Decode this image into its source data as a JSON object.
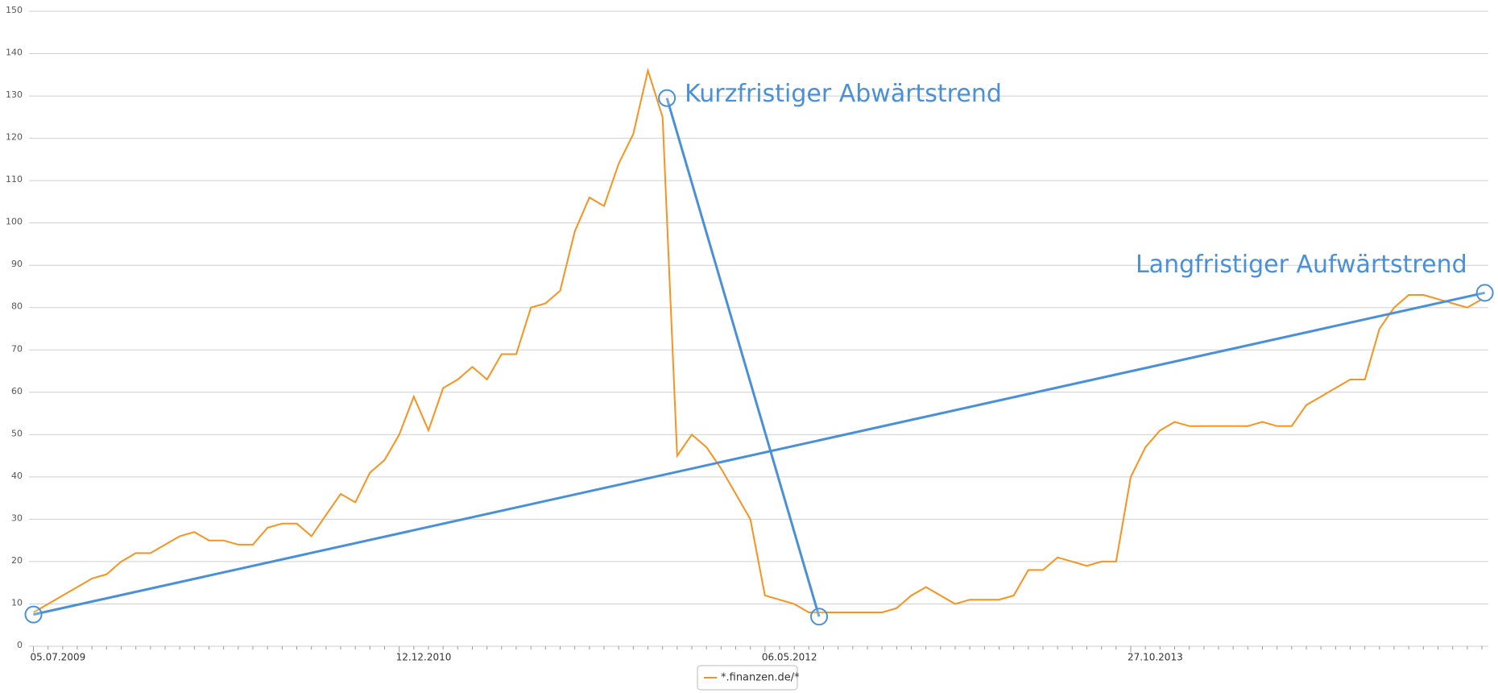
{
  "chart_data": {
    "type": "line",
    "categories": [
      "05.07.2009",
      null,
      null,
      null,
      null,
      null,
      null,
      null,
      null,
      null,
      null,
      null,
      null,
      null,
      null,
      null,
      null,
      null,
      null,
      null,
      null,
      null,
      null,
      null,
      null,
      "12.12.2010",
      null,
      null,
      null,
      null,
      null,
      null,
      null,
      null,
      null,
      null,
      null,
      null,
      null,
      null,
      null,
      null,
      null,
      null,
      null,
      null,
      null,
      null,
      null,
      null,
      "06.05.2012",
      null,
      null,
      null,
      null,
      null,
      null,
      null,
      null,
      null,
      null,
      null,
      null,
      null,
      null,
      null,
      null,
      null,
      null,
      null,
      null,
      null,
      null,
      null,
      null,
      "27.10.2013",
      null,
      null,
      null,
      null,
      null,
      null,
      null,
      null,
      null,
      null,
      null,
      null,
      null,
      null,
      null,
      null,
      null,
      null,
      null,
      null,
      null,
      null,
      null,
      null
    ],
    "series": [
      {
        "name": "*.finanzen.de/*",
        "color": "#f7931e",
        "values": [
          8,
          10,
          12,
          14,
          16,
          17,
          20,
          22,
          22,
          24,
          26,
          27,
          25,
          25,
          24,
          24,
          28,
          29,
          29,
          26,
          31,
          36,
          34,
          41,
          44,
          50,
          59,
          51,
          61,
          63,
          66,
          63,
          69,
          69,
          80,
          81,
          84,
          98,
          106,
          104,
          114,
          121,
          136,
          125,
          45,
          50,
          47,
          42,
          36,
          30,
          12,
          11,
          10,
          8,
          8,
          8,
          8,
          8,
          8,
          9,
          12,
          14,
          12,
          10,
          11,
          11,
          11,
          12,
          18,
          18,
          21,
          20,
          19,
          20,
          20,
          40,
          47,
          51,
          53,
          52,
          52,
          52,
          52,
          52,
          53,
          52,
          52,
          57,
          59,
          61,
          63,
          63,
          75,
          80,
          83,
          83,
          82,
          81,
          80,
          82
        ]
      }
    ],
    "ylim": [
      0,
      150
    ],
    "yticks": [
      0,
      10,
      20,
      30,
      40,
      50,
      60,
      70,
      80,
      90,
      100,
      110,
      120,
      130,
      140,
      150
    ],
    "grid": true,
    "trendlines": [
      {
        "label": "Kurzfristiger Abwärtstrend",
        "color": "#4a90d9",
        "x0": 43.3,
        "y0": 129.5,
        "x1": 53.7,
        "y1": 7
      },
      {
        "label": "Langfristiger Aufwärtstrend",
        "color": "#4a90d9",
        "x0": 0,
        "y0": 7.5,
        "x1": 99.2,
        "y1": 83.5
      }
    ]
  }
}
